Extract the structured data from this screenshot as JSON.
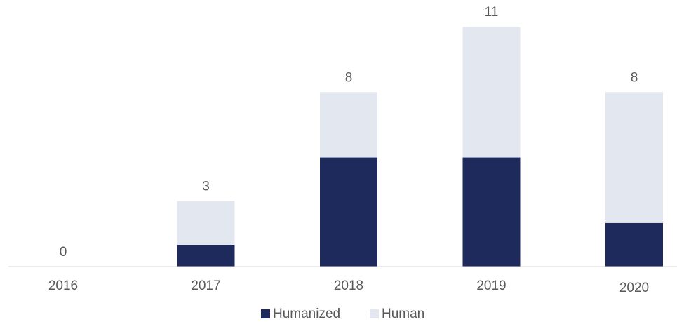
{
  "chart_data": {
    "type": "stacked_bar",
    "categories": [
      "2016",
      "2017",
      "2018",
      "2019",
      "2020"
    ],
    "series": [
      {
        "name": "Humanized",
        "color": "#1f2a5c",
        "values": [
          0,
          1,
          5,
          5,
          2
        ]
      },
      {
        "name": "Human",
        "color": "#e3e7ef",
        "values": [
          0,
          2,
          3,
          6,
          6
        ]
      }
    ],
    "totals": [
      0,
      3,
      8,
      11,
      8
    ],
    "ylim": [
      0,
      11
    ],
    "grid": false
  }
}
